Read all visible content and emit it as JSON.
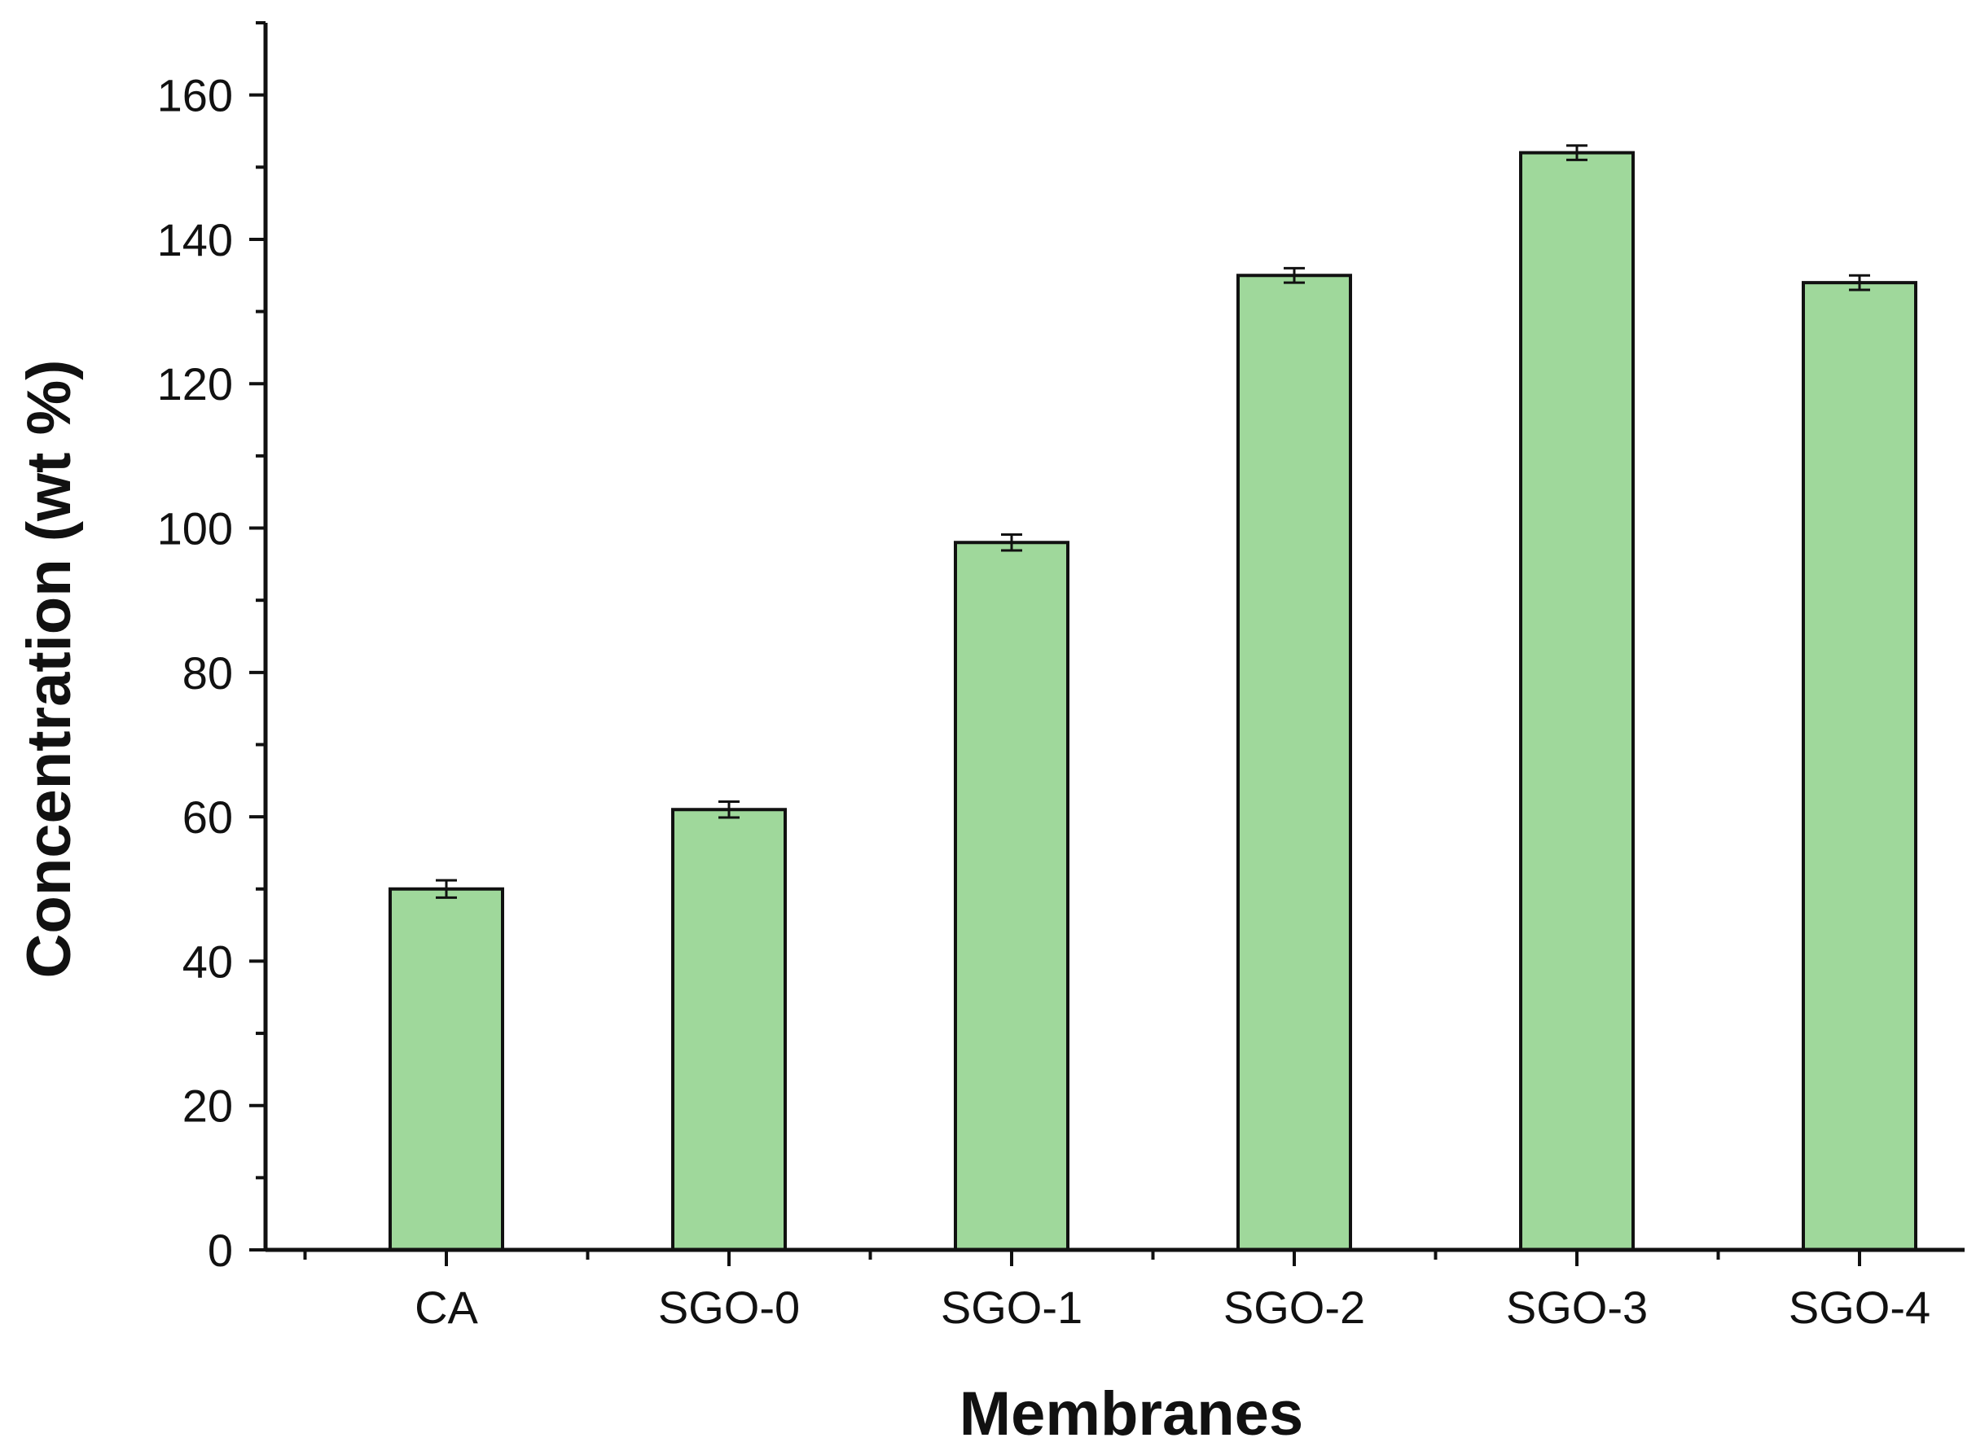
{
  "chart_data": {
    "type": "bar",
    "categories": [
      "CA",
      "SGO-0",
      "SGO-1",
      "SGO-2",
      "SGO-3",
      "SGO-4"
    ],
    "values": [
      50,
      61,
      98,
      135,
      152,
      134
    ],
    "errors": [
      1.2,
      1.1,
      1.1,
      1.0,
      1.0,
      1.0
    ],
    "xlabel": "Membranes",
    "ylabel": "Concentration (wt %)",
    "ylim": [
      0,
      170
    ],
    "yticks": [
      0,
      20,
      40,
      60,
      80,
      100,
      120,
      140,
      160
    ],
    "grid": false,
    "bar_color": "#9fd89b",
    "edge_color": "#111111"
  }
}
